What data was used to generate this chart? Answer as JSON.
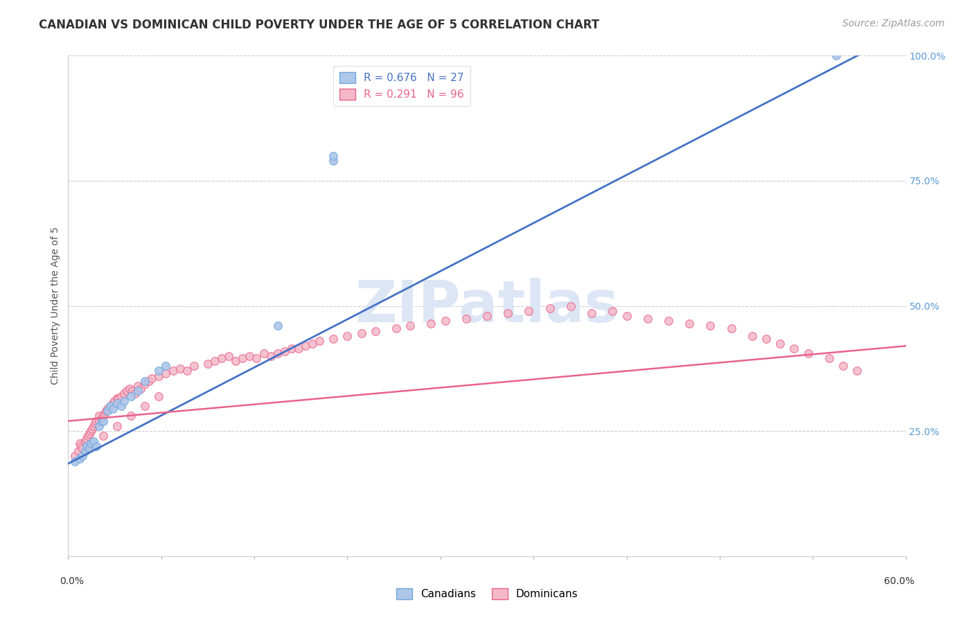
{
  "title": "CANADIAN VS DOMINICAN CHILD POVERTY UNDER THE AGE OF 5 CORRELATION CHART",
  "source": "Source: ZipAtlas.com",
  "ylabel": "Child Poverty Under the Age of 5",
  "right_yticklabels": [
    "25.0%",
    "50.0%",
    "75.0%",
    "100.0%"
  ],
  "right_ytick_vals": [
    0.25,
    0.5,
    0.75,
    1.0
  ],
  "canadians_x": [
    0.005,
    0.008,
    0.01,
    0.012,
    0.013,
    0.015,
    0.016,
    0.018,
    0.02,
    0.022,
    0.024,
    0.025,
    0.028,
    0.03,
    0.032,
    0.035,
    0.038,
    0.04,
    0.045,
    0.05,
    0.055,
    0.065,
    0.07,
    0.15,
    0.19,
    0.19,
    0.55
  ],
  "canadians_y": [
    0.19,
    0.195,
    0.2,
    0.21,
    0.22,
    0.215,
    0.225,
    0.23,
    0.22,
    0.26,
    0.27,
    0.27,
    0.29,
    0.3,
    0.295,
    0.305,
    0.3,
    0.31,
    0.32,
    0.33,
    0.35,
    0.37,
    0.38,
    0.46,
    0.79,
    0.8,
    1.0
  ],
  "dominicans_x": [
    0.005,
    0.007,
    0.008,
    0.009,
    0.01,
    0.012,
    0.013,
    0.014,
    0.015,
    0.016,
    0.017,
    0.018,
    0.019,
    0.02,
    0.022,
    0.022,
    0.024,
    0.025,
    0.026,
    0.027,
    0.028,
    0.03,
    0.032,
    0.033,
    0.035,
    0.036,
    0.038,
    0.04,
    0.042,
    0.044,
    0.046,
    0.048,
    0.05,
    0.052,
    0.055,
    0.058,
    0.06,
    0.065,
    0.07,
    0.075,
    0.08,
    0.085,
    0.09,
    0.1,
    0.105,
    0.11,
    0.115,
    0.12,
    0.125,
    0.13,
    0.135,
    0.14,
    0.145,
    0.15,
    0.155,
    0.16,
    0.165,
    0.17,
    0.175,
    0.18,
    0.19,
    0.2,
    0.21,
    0.22,
    0.235,
    0.245,
    0.26,
    0.27,
    0.285,
    0.3,
    0.315,
    0.33,
    0.345,
    0.36,
    0.375,
    0.39,
    0.4,
    0.415,
    0.43,
    0.445,
    0.46,
    0.475,
    0.49,
    0.5,
    0.51,
    0.52,
    0.53,
    0.545,
    0.555,
    0.565,
    0.015,
    0.025,
    0.035,
    0.045,
    0.055,
    0.065
  ],
  "dominicans_y": [
    0.2,
    0.21,
    0.225,
    0.22,
    0.215,
    0.23,
    0.235,
    0.24,
    0.245,
    0.25,
    0.255,
    0.26,
    0.265,
    0.27,
    0.28,
    0.27,
    0.275,
    0.28,
    0.285,
    0.29,
    0.295,
    0.3,
    0.305,
    0.31,
    0.315,
    0.315,
    0.32,
    0.325,
    0.33,
    0.335,
    0.33,
    0.325,
    0.34,
    0.335,
    0.345,
    0.35,
    0.355,
    0.36,
    0.365,
    0.37,
    0.375,
    0.37,
    0.38,
    0.385,
    0.39,
    0.395,
    0.4,
    0.39,
    0.395,
    0.4,
    0.395,
    0.405,
    0.4,
    0.405,
    0.41,
    0.415,
    0.415,
    0.42,
    0.425,
    0.43,
    0.435,
    0.44,
    0.445,
    0.45,
    0.455,
    0.46,
    0.465,
    0.47,
    0.475,
    0.48,
    0.485,
    0.49,
    0.495,
    0.5,
    0.485,
    0.49,
    0.48,
    0.475,
    0.47,
    0.465,
    0.46,
    0.455,
    0.44,
    0.435,
    0.425,
    0.415,
    0.405,
    0.395,
    0.38,
    0.37,
    0.22,
    0.24,
    0.26,
    0.28,
    0.3,
    0.32
  ],
  "blue_line_x": [
    0.0,
    0.6
  ],
  "blue_line_y": [
    0.185,
    1.05
  ],
  "pink_line_x": [
    0.0,
    0.6
  ],
  "pink_line_y": [
    0.27,
    0.42
  ],
  "blue_line_color": "#4472C4",
  "pink_line_color": "#E8628A",
  "blue_dot_facecolor": "#AEC6E8",
  "blue_dot_edgecolor": "#6FA8DC",
  "pink_dot_facecolor": "#F4B8C8",
  "pink_dot_edgecolor": "#E8628A",
  "grid_color": "#cccccc",
  "grid_style": "--",
  "background_color": "#ffffff",
  "watermark_text": "ZIPatlas",
  "watermark_color": "#dce6f5",
  "title_fontsize": 12,
  "source_fontsize": 10,
  "ylabel_fontsize": 10,
  "tick_fontsize": 10,
  "legend_fontsize": 11,
  "dot_size": 70,
  "xlim": [
    0.0,
    0.6
  ],
  "ylim": [
    0.0,
    1.0
  ]
}
